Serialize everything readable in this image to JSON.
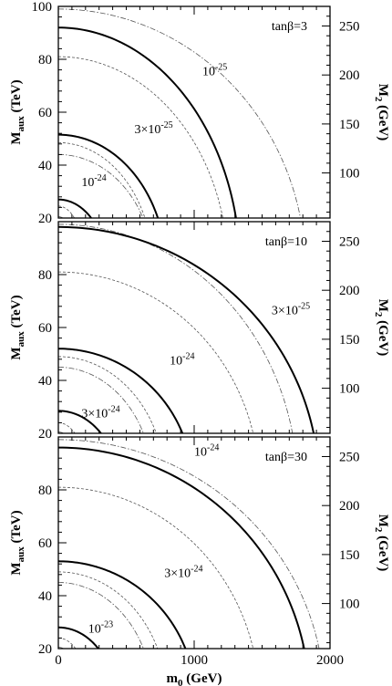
{
  "chart_data": [
    {
      "type": "line",
      "panel": "top",
      "annotation": "tanβ=3",
      "xlabel": "",
      "ylabel": "M_aux (TeV)",
      "y2label": "M_2 (GeV)",
      "xlim": [
        0,
        2000
      ],
      "ylim": [
        20,
        100
      ],
      "xticks": [
        "0",
        "1000",
        "2000"
      ],
      "yticks": [
        "20",
        "40",
        "60",
        "80",
        "100"
      ],
      "y2ticks": [
        "100",
        "150",
        "200",
        "250"
      ],
      "contours": [
        {
          "label": "10^-24",
          "label_display": "10-24",
          "x_intercept": 360,
          "y_intercept": 27,
          "label_at": [
            170,
            32
          ]
        },
        {
          "label": "3×10^-25",
          "label_display": "3×10-25",
          "x_intercept": 795,
          "y_intercept": 51.5,
          "label_at": [
            560,
            52
          ]
        },
        {
          "label": "10^-25",
          "label_display": "10-25",
          "x_intercept": 1340,
          "y_intercept": 92,
          "label_at": [
            1060,
            74
          ]
        }
      ],
      "dashed_curves": [
        {
          "x_intercept": 205,
          "y_intercept": 24.5
        },
        {
          "x_intercept": 700,
          "y_intercept": 48.5
        },
        {
          "x_intercept": 1250,
          "y_intercept": 81
        }
      ],
      "dashdot_curves": [
        {
          "x_intercept": 150,
          "y_intercept": 20.5
        },
        {
          "x_intercept": 700,
          "y_intercept": 44
        },
        {
          "x_intercept": 1820,
          "y_intercept": 99
        }
      ]
    },
    {
      "type": "line",
      "panel": "middle",
      "annotation": "tanβ=10",
      "xlabel": "",
      "ylabel": "M_aux (TeV)",
      "y2label": "M_2 (GeV)",
      "xlim": [
        0,
        2000
      ],
      "ylim": [
        20,
        100
      ],
      "xticks": [
        "0",
        "1000",
        "2000"
      ],
      "yticks": [
        "20",
        "40",
        "60",
        "80"
      ],
      "y2ticks": [
        "100",
        "150",
        "200",
        "250"
      ],
      "contours": [
        {
          "label": "3×10^-24",
          "label_display": "3×10-24",
          "x_intercept": 440,
          "y_intercept": 28.5,
          "label_at": [
            170,
            26
          ]
        },
        {
          "label": "10^-24",
          "label_display": "10-24",
          "x_intercept": 990,
          "y_intercept": 52,
          "label_at": [
            820,
            46
          ]
        },
        {
          "label": "3×10^-25",
          "label_display": "3×10-25",
          "x_intercept": 1920,
          "y_intercept": 98,
          "label_at": [
            1570,
            65
          ]
        }
      ],
      "dashed_curves": [
        {
          "x_intercept": 220,
          "y_intercept": 24
        },
        {
          "x_intercept": 790,
          "y_intercept": 49
        },
        {
          "x_intercept": 1480,
          "y_intercept": 81
        }
      ],
      "dashdot_curves": [
        {
          "x_intercept": 170,
          "y_intercept": 20.5
        },
        {
          "x_intercept": 700,
          "y_intercept": 45
        },
        {
          "x_intercept": 1760,
          "y_intercept": 99
        }
      ]
    },
    {
      "type": "line",
      "panel": "bottom",
      "annotation": "tanβ=30",
      "xlabel": "m_0 (GeV)",
      "ylabel": "M_aux (TeV)",
      "y2label": "M_2 (GeV)",
      "xlim": [
        0,
        2000
      ],
      "ylim": [
        20,
        100
      ],
      "xticks": [
        "0",
        "1000",
        "2000"
      ],
      "yticks": [
        "20",
        "40",
        "60",
        "80"
      ],
      "y2ticks": [
        "100",
        "150",
        "200",
        "250"
      ],
      "contours": [
        {
          "label": "10^-23",
          "label_display": "10-23",
          "x_intercept": 420,
          "y_intercept": 28,
          "label_at": [
            220,
            26
          ]
        },
        {
          "label": "3×10^-24",
          "label_display": "3×10-24",
          "x_intercept": 1010,
          "y_intercept": 53,
          "label_at": [
            780,
            47
          ]
        },
        {
          "label": "10^-24",
          "label_display": "10-24",
          "x_intercept": 1850,
          "y_intercept": 96,
          "label_at": [
            1000,
            93
          ]
        }
      ],
      "dashed_curves": [
        {
          "x_intercept": 230,
          "y_intercept": 24
        },
        {
          "x_intercept": 800,
          "y_intercept": 49
        },
        {
          "x_intercept": 1480,
          "y_intercept": 81
        }
      ],
      "dashdot_curves": [
        {
          "x_intercept": 170,
          "y_intercept": 20.5
        },
        {
          "x_intercept": 700,
          "y_intercept": 45
        },
        {
          "x_intercept": 1960,
          "y_intercept": 99
        }
      ]
    }
  ]
}
